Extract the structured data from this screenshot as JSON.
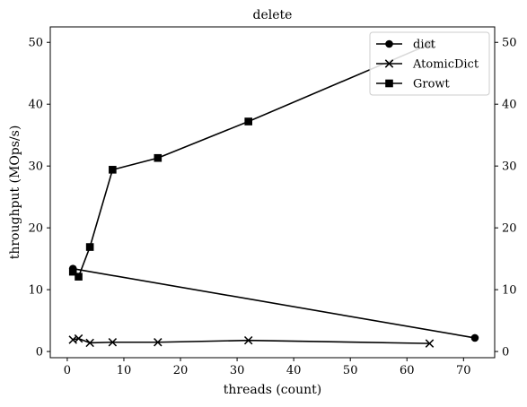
{
  "chart_data": {
    "type": "line",
    "title": "delete",
    "xlabel": "threads (count)",
    "ylabel": "throughput (MOps/s)",
    "xlim": [
      -3,
      75.5
    ],
    "ylim": [
      -1,
      52.5
    ],
    "xticks": [
      0,
      10,
      20,
      30,
      40,
      50,
      60,
      70
    ],
    "yticks": [
      0,
      10,
      20,
      30,
      40,
      50
    ],
    "right_axis_ticks": [
      0,
      10,
      20,
      30,
      40,
      50
    ],
    "grid": false,
    "legend_position": "top-right",
    "series": [
      {
        "name": "dict",
        "marker": "circle",
        "color": "#000000",
        "x": [
          1,
          72
        ],
        "y": [
          13.4,
          2.2
        ]
      },
      {
        "name": "AtomicDict",
        "marker": "x",
        "color": "#000000",
        "x": [
          1,
          2,
          4,
          8,
          16,
          32,
          64
        ],
        "y": [
          1.9,
          2.1,
          1.4,
          1.5,
          1.5,
          1.8,
          1.3
        ]
      },
      {
        "name": "Growt",
        "marker": "square",
        "color": "#000000",
        "x": [
          1,
          2,
          4,
          8,
          16,
          32,
          64
        ],
        "y": [
          12.9,
          12.1,
          16.9,
          29.4,
          31.3,
          37.2,
          49.7
        ]
      }
    ]
  }
}
